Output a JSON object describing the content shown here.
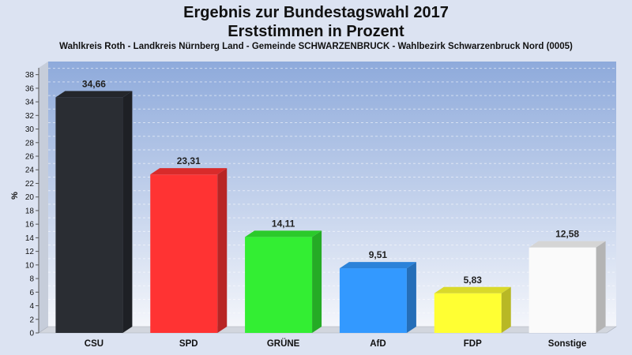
{
  "chart_data": {
    "type": "bar",
    "title": "Ergebnis zur Bundestagswahl 2017",
    "title2": "Erststimmen in Prozent",
    "subtitle": "Wahlkreis Roth - Landkreis Nürnberg Land - Gemeinde SCHWARZENBRUCK - Wahlbezirk Schwarzenbruck Nord (0005)",
    "ylabel": "%",
    "ylim": [
      0,
      39
    ],
    "yticks": [
      0,
      2,
      4,
      6,
      8,
      10,
      12,
      14,
      16,
      18,
      20,
      22,
      24,
      26,
      28,
      30,
      32,
      34,
      36,
      38
    ],
    "categories": [
      "CSU",
      "SPD",
      "GRÜNE",
      "AfD",
      "FDP",
      "Sonstige"
    ],
    "values": [
      34.66,
      23.31,
      14.11,
      9.51,
      5.83,
      12.58
    ],
    "value_labels": [
      "34,66",
      "23,31",
      "14,11",
      "9,51",
      "5,83",
      "12,58"
    ],
    "colors": [
      "#2a2d33",
      "#ff3333",
      "#33ee33",
      "#3399ff",
      "#ffff33",
      "#fafafa"
    ],
    "grid": true
  }
}
